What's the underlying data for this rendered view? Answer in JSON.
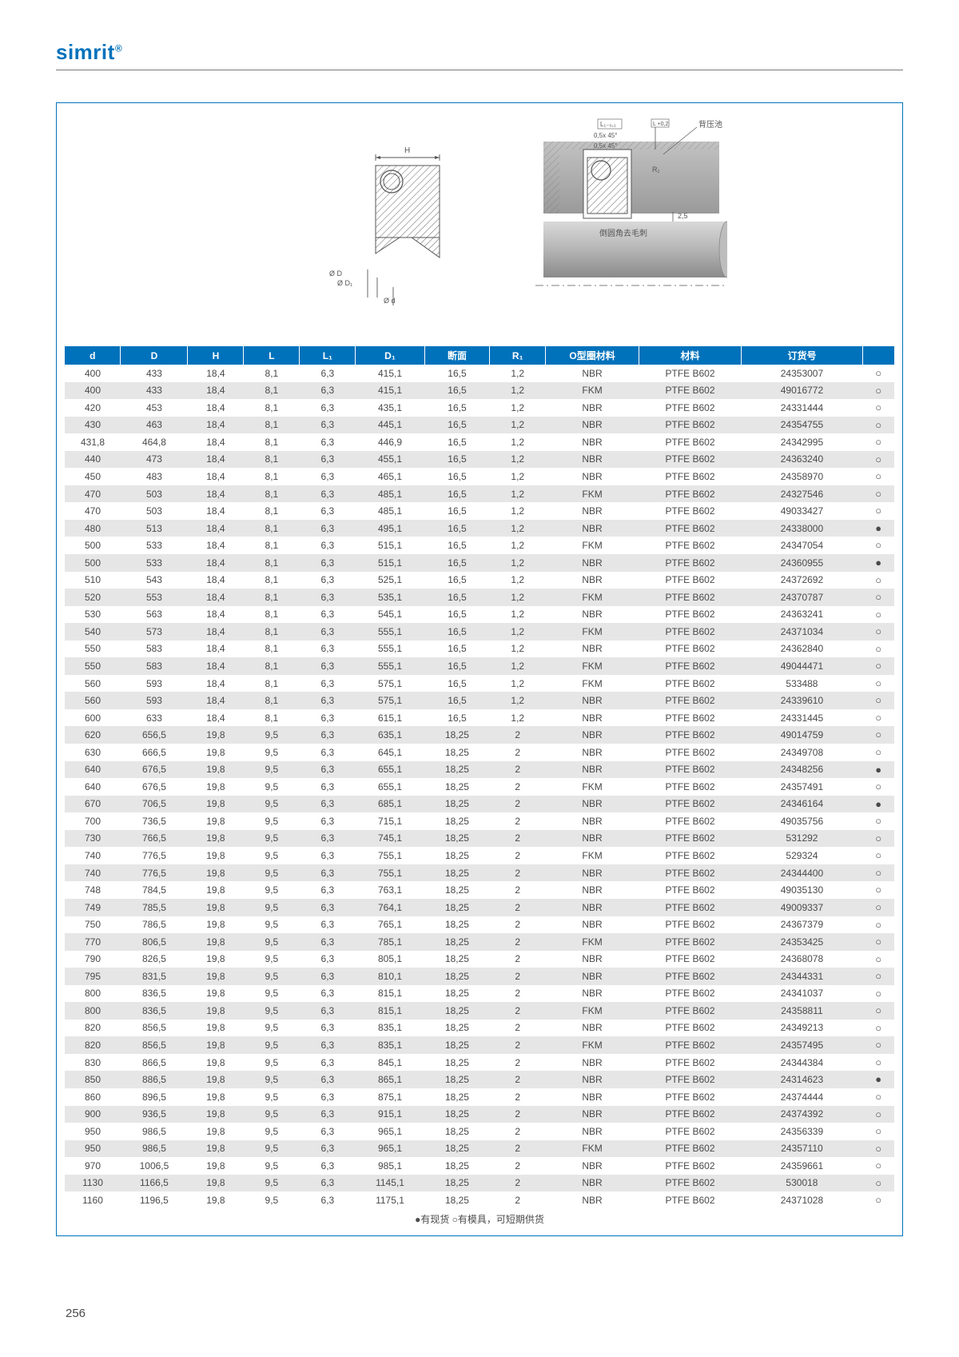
{
  "brand": "simrit",
  "brand_mark": "®",
  "page_number": "256",
  "footnote": "●有现货 ○有模具，可短期供货",
  "diagram_labels": {
    "H": "H",
    "L1": "L₁₋₀,₁",
    "c1": "0,5x  45°",
    "c2": "0,5x  45°",
    "R1": "R₁",
    "d25": "2,5",
    "dD": "Ø D",
    "dD1": "Ø D₁",
    "dd": "Ø d",
    "note1": "背压池",
    "note2": "倒圆角去毛刺"
  },
  "columns": [
    {
      "key": "d",
      "label": "d",
      "cls": "col-d"
    },
    {
      "key": "D",
      "label": "D",
      "cls": "col-D"
    },
    {
      "key": "H",
      "label": "H",
      "cls": "col-H"
    },
    {
      "key": "L",
      "label": "L",
      "cls": "col-L"
    },
    {
      "key": "L1",
      "label": "L₁",
      "cls": "col-L1"
    },
    {
      "key": "D1",
      "label": "D₁",
      "cls": "col-D1"
    },
    {
      "key": "sec",
      "label": "断面",
      "cls": "col-sec"
    },
    {
      "key": "R1",
      "label": "R₁",
      "cls": "col-R1"
    },
    {
      "key": "omat",
      "label": "O型圈材料",
      "cls": "col-omat"
    },
    {
      "key": "mat",
      "label": "材料",
      "cls": "col-mat"
    },
    {
      "key": "ord",
      "label": "订货号",
      "cls": "col-ord"
    },
    {
      "key": "avail",
      "label": "",
      "cls": "col-avail"
    }
  ],
  "rows": [
    {
      "d": "400",
      "D": "433",
      "H": "18,4",
      "L": "8,1",
      "L1": "6,3",
      "D1": "415,1",
      "sec": "16,5",
      "R1": "1,2",
      "omat": "NBR",
      "mat": "PTFE B602",
      "ord": "24353007",
      "avail": "○",
      "shade": false
    },
    {
      "d": "400",
      "D": "433",
      "H": "18,4",
      "L": "8,1",
      "L1": "6,3",
      "D1": "415,1",
      "sec": "16,5",
      "R1": "1,2",
      "omat": "FKM",
      "mat": "PTFE B602",
      "ord": "49016772",
      "avail": "○",
      "shade": true
    },
    {
      "d": "420",
      "D": "453",
      "H": "18,4",
      "L": "8,1",
      "L1": "6,3",
      "D1": "435,1",
      "sec": "16,5",
      "R1": "1,2",
      "omat": "NBR",
      "mat": "PTFE B602",
      "ord": "24331444",
      "avail": "○",
      "shade": false
    },
    {
      "d": "430",
      "D": "463",
      "H": "18,4",
      "L": "8,1",
      "L1": "6,3",
      "D1": "445,1",
      "sec": "16,5",
      "R1": "1,2",
      "omat": "NBR",
      "mat": "PTFE B602",
      "ord": "24354755",
      "avail": "○",
      "shade": true
    },
    {
      "d": "431,8",
      "D": "464,8",
      "H": "18,4",
      "L": "8,1",
      "L1": "6,3",
      "D1": "446,9",
      "sec": "16,5",
      "R1": "1,2",
      "omat": "NBR",
      "mat": "PTFE B602",
      "ord": "24342995",
      "avail": "○",
      "shade": false
    },
    {
      "d": "440",
      "D": "473",
      "H": "18,4",
      "L": "8,1",
      "L1": "6,3",
      "D1": "455,1",
      "sec": "16,5",
      "R1": "1,2",
      "omat": "NBR",
      "mat": "PTFE B602",
      "ord": "24363240",
      "avail": "○",
      "shade": true
    },
    {
      "d": "450",
      "D": "483",
      "H": "18,4",
      "L": "8,1",
      "L1": "6,3",
      "D1": "465,1",
      "sec": "16,5",
      "R1": "1,2",
      "omat": "NBR",
      "mat": "PTFE B602",
      "ord": "24358970",
      "avail": "○",
      "shade": false
    },
    {
      "d": "470",
      "D": "503",
      "H": "18,4",
      "L": "8,1",
      "L1": "6,3",
      "D1": "485,1",
      "sec": "16,5",
      "R1": "1,2",
      "omat": "FKM",
      "mat": "PTFE B602",
      "ord": "24327546",
      "avail": "○",
      "shade": true
    },
    {
      "d": "470",
      "D": "503",
      "H": "18,4",
      "L": "8,1",
      "L1": "6,3",
      "D1": "485,1",
      "sec": "16,5",
      "R1": "1,2",
      "omat": "NBR",
      "mat": "PTFE B602",
      "ord": "49033427",
      "avail": "○",
      "shade": false
    },
    {
      "d": "480",
      "D": "513",
      "H": "18,4",
      "L": "8,1",
      "L1": "6,3",
      "D1": "495,1",
      "sec": "16,5",
      "R1": "1,2",
      "omat": "NBR",
      "mat": "PTFE B602",
      "ord": "24338000",
      "avail": "●",
      "shade": true
    },
    {
      "d": "500",
      "D": "533",
      "H": "18,4",
      "L": "8,1",
      "L1": "6,3",
      "D1": "515,1",
      "sec": "16,5",
      "R1": "1,2",
      "omat": "FKM",
      "mat": "PTFE B602",
      "ord": "24347054",
      "avail": "○",
      "shade": false
    },
    {
      "d": "500",
      "D": "533",
      "H": "18,4",
      "L": "8,1",
      "L1": "6,3",
      "D1": "515,1",
      "sec": "16,5",
      "R1": "1,2",
      "omat": "NBR",
      "mat": "PTFE B602",
      "ord": "24360955",
      "avail": "●",
      "shade": true
    },
    {
      "d": "510",
      "D": "543",
      "H": "18,4",
      "L": "8,1",
      "L1": "6,3",
      "D1": "525,1",
      "sec": "16,5",
      "R1": "1,2",
      "omat": "NBR",
      "mat": "PTFE B602",
      "ord": "24372692",
      "avail": "○",
      "shade": false
    },
    {
      "d": "520",
      "D": "553",
      "H": "18,4",
      "L": "8,1",
      "L1": "6,3",
      "D1": "535,1",
      "sec": "16,5",
      "R1": "1,2",
      "omat": "FKM",
      "mat": "PTFE B602",
      "ord": "24370787",
      "avail": "○",
      "shade": true
    },
    {
      "d": "530",
      "D": "563",
      "H": "18,4",
      "L": "8,1",
      "L1": "6,3",
      "D1": "545,1",
      "sec": "16,5",
      "R1": "1,2",
      "omat": "NBR",
      "mat": "PTFE B602",
      "ord": "24363241",
      "avail": "○",
      "shade": false
    },
    {
      "d": "540",
      "D": "573",
      "H": "18,4",
      "L": "8,1",
      "L1": "6,3",
      "D1": "555,1",
      "sec": "16,5",
      "R1": "1,2",
      "omat": "FKM",
      "mat": "PTFE B602",
      "ord": "24371034",
      "avail": "○",
      "shade": true
    },
    {
      "d": "550",
      "D": "583",
      "H": "18,4",
      "L": "8,1",
      "L1": "6,3",
      "D1": "555,1",
      "sec": "16,5",
      "R1": "1,2",
      "omat": "NBR",
      "mat": "PTFE B602",
      "ord": "24362840",
      "avail": "○",
      "shade": false
    },
    {
      "d": "550",
      "D": "583",
      "H": "18,4",
      "L": "8,1",
      "L1": "6,3",
      "D1": "555,1",
      "sec": "16,5",
      "R1": "1,2",
      "omat": "FKM",
      "mat": "PTFE B602",
      "ord": "49044471",
      "avail": "○",
      "shade": true
    },
    {
      "d": "560",
      "D": "593",
      "H": "18,4",
      "L": "8,1",
      "L1": "6,3",
      "D1": "575,1",
      "sec": "16,5",
      "R1": "1,2",
      "omat": "FKM",
      "mat": "PTFE B602",
      "ord": "533488",
      "avail": "○",
      "shade": false
    },
    {
      "d": "560",
      "D": "593",
      "H": "18,4",
      "L": "8,1",
      "L1": "6,3",
      "D1": "575,1",
      "sec": "16,5",
      "R1": "1,2",
      "omat": "NBR",
      "mat": "PTFE B602",
      "ord": "24339610",
      "avail": "○",
      "shade": true
    },
    {
      "d": "600",
      "D": "633",
      "H": "18,4",
      "L": "8,1",
      "L1": "6,3",
      "D1": "615,1",
      "sec": "16,5",
      "R1": "1,2",
      "omat": "NBR",
      "mat": "PTFE B602",
      "ord": "24331445",
      "avail": "○",
      "shade": false
    },
    {
      "d": "620",
      "D": "656,5",
      "H": "19,8",
      "L": "9,5",
      "L1": "6,3",
      "D1": "635,1",
      "sec": "18,25",
      "R1": "2",
      "omat": "NBR",
      "mat": "PTFE B602",
      "ord": "49014759",
      "avail": "○",
      "shade": true
    },
    {
      "d": "630",
      "D": "666,5",
      "H": "19,8",
      "L": "9,5",
      "L1": "6,3",
      "D1": "645,1",
      "sec": "18,25",
      "R1": "2",
      "omat": "NBR",
      "mat": "PTFE B602",
      "ord": "24349708",
      "avail": "○",
      "shade": false
    },
    {
      "d": "640",
      "D": "676,5",
      "H": "19,8",
      "L": "9,5",
      "L1": "6,3",
      "D1": "655,1",
      "sec": "18,25",
      "R1": "2",
      "omat": "NBR",
      "mat": "PTFE B602",
      "ord": "24348256",
      "avail": "●",
      "shade": true
    },
    {
      "d": "640",
      "D": "676,5",
      "H": "19,8",
      "L": "9,5",
      "L1": "6,3",
      "D1": "655,1",
      "sec": "18,25",
      "R1": "2",
      "omat": "FKM",
      "mat": "PTFE B602",
      "ord": "24357491",
      "avail": "○",
      "shade": false
    },
    {
      "d": "670",
      "D": "706,5",
      "H": "19,8",
      "L": "9,5",
      "L1": "6,3",
      "D1": "685,1",
      "sec": "18,25",
      "R1": "2",
      "omat": "NBR",
      "mat": "PTFE B602",
      "ord": "24346164",
      "avail": "●",
      "shade": true
    },
    {
      "d": "700",
      "D": "736,5",
      "H": "19,8",
      "L": "9,5",
      "L1": "6,3",
      "D1": "715,1",
      "sec": "18,25",
      "R1": "2",
      "omat": "NBR",
      "mat": "PTFE B602",
      "ord": "49035756",
      "avail": "○",
      "shade": false
    },
    {
      "d": "730",
      "D": "766,5",
      "H": "19,8",
      "L": "9,5",
      "L1": "6,3",
      "D1": "745,1",
      "sec": "18,25",
      "R1": "2",
      "omat": "NBR",
      "mat": "PTFE B602",
      "ord": "531292",
      "avail": "○",
      "shade": true
    },
    {
      "d": "740",
      "D": "776,5",
      "H": "19,8",
      "L": "9,5",
      "L1": "6,3",
      "D1": "755,1",
      "sec": "18,25",
      "R1": "2",
      "omat": "FKM",
      "mat": "PTFE B602",
      "ord": "529324",
      "avail": "○",
      "shade": false
    },
    {
      "d": "740",
      "D": "776,5",
      "H": "19,8",
      "L": "9,5",
      "L1": "6,3",
      "D1": "755,1",
      "sec": "18,25",
      "R1": "2",
      "omat": "NBR",
      "mat": "PTFE B602",
      "ord": "24344400",
      "avail": "○",
      "shade": true
    },
    {
      "d": "748",
      "D": "784,5",
      "H": "19,8",
      "L": "9,5",
      "L1": "6,3",
      "D1": "763,1",
      "sec": "18,25",
      "R1": "2",
      "omat": "NBR",
      "mat": "PTFE B602",
      "ord": "49035130",
      "avail": "○",
      "shade": false
    },
    {
      "d": "749",
      "D": "785,5",
      "H": "19,8",
      "L": "9,5",
      "L1": "6,3",
      "D1": "764,1",
      "sec": "18,25",
      "R1": "2",
      "omat": "NBR",
      "mat": "PTFE B602",
      "ord": "49009337",
      "avail": "○",
      "shade": true
    },
    {
      "d": "750",
      "D": "786,5",
      "H": "19,8",
      "L": "9,5",
      "L1": "6,3",
      "D1": "765,1",
      "sec": "18,25",
      "R1": "2",
      "omat": "NBR",
      "mat": "PTFE B602",
      "ord": "24367379",
      "avail": "○",
      "shade": false
    },
    {
      "d": "770",
      "D": "806,5",
      "H": "19,8",
      "L": "9,5",
      "L1": "6,3",
      "D1": "785,1",
      "sec": "18,25",
      "R1": "2",
      "omat": "FKM",
      "mat": "PTFE B602",
      "ord": "24353425",
      "avail": "○",
      "shade": true
    },
    {
      "d": "790",
      "D": "826,5",
      "H": "19,8",
      "L": "9,5",
      "L1": "6,3",
      "D1": "805,1",
      "sec": "18,25",
      "R1": "2",
      "omat": "NBR",
      "mat": "PTFE B602",
      "ord": "24368078",
      "avail": "○",
      "shade": false
    },
    {
      "d": "795",
      "D": "831,5",
      "H": "19,8",
      "L": "9,5",
      "L1": "6,3",
      "D1": "810,1",
      "sec": "18,25",
      "R1": "2",
      "omat": "NBR",
      "mat": "PTFE B602",
      "ord": "24344331",
      "avail": "○",
      "shade": true
    },
    {
      "d": "800",
      "D": "836,5",
      "H": "19,8",
      "L": "9,5",
      "L1": "6,3",
      "D1": "815,1",
      "sec": "18,25",
      "R1": "2",
      "omat": "NBR",
      "mat": "PTFE B602",
      "ord": "24341037",
      "avail": "○",
      "shade": false
    },
    {
      "d": "800",
      "D": "836,5",
      "H": "19,8",
      "L": "9,5",
      "L1": "6,3",
      "D1": "815,1",
      "sec": "18,25",
      "R1": "2",
      "omat": "FKM",
      "mat": "PTFE B602",
      "ord": "24358811",
      "avail": "○",
      "shade": true
    },
    {
      "d": "820",
      "D": "856,5",
      "H": "19,8",
      "L": "9,5",
      "L1": "6,3",
      "D1": "835,1",
      "sec": "18,25",
      "R1": "2",
      "omat": "NBR",
      "mat": "PTFE B602",
      "ord": "24349213",
      "avail": "○",
      "shade": false
    },
    {
      "d": "820",
      "D": "856,5",
      "H": "19,8",
      "L": "9,5",
      "L1": "6,3",
      "D1": "835,1",
      "sec": "18,25",
      "R1": "2",
      "omat": "FKM",
      "mat": "PTFE B602",
      "ord": "24357495",
      "avail": "○",
      "shade": true
    },
    {
      "d": "830",
      "D": "866,5",
      "H": "19,8",
      "L": "9,5",
      "L1": "6,3",
      "D1": "845,1",
      "sec": "18,25",
      "R1": "2",
      "omat": "NBR",
      "mat": "PTFE B602",
      "ord": "24344384",
      "avail": "○",
      "shade": false
    },
    {
      "d": "850",
      "D": "886,5",
      "H": "19,8",
      "L": "9,5",
      "L1": "6,3",
      "D1": "865,1",
      "sec": "18,25",
      "R1": "2",
      "omat": "NBR",
      "mat": "PTFE B602",
      "ord": "24314623",
      "avail": "●",
      "shade": true
    },
    {
      "d": "860",
      "D": "896,5",
      "H": "19,8",
      "L": "9,5",
      "L1": "6,3",
      "D1": "875,1",
      "sec": "18,25",
      "R1": "2",
      "omat": "NBR",
      "mat": "PTFE B602",
      "ord": "24374444",
      "avail": "○",
      "shade": false
    },
    {
      "d": "900",
      "D": "936,5",
      "H": "19,8",
      "L": "9,5",
      "L1": "6,3",
      "D1": "915,1",
      "sec": "18,25",
      "R1": "2",
      "omat": "NBR",
      "mat": "PTFE B602",
      "ord": "24374392",
      "avail": "○",
      "shade": true
    },
    {
      "d": "950",
      "D": "986,5",
      "H": "19,8",
      "L": "9,5",
      "L1": "6,3",
      "D1": "965,1",
      "sec": "18,25",
      "R1": "2",
      "omat": "NBR",
      "mat": "PTFE B602",
      "ord": "24356339",
      "avail": "○",
      "shade": false
    },
    {
      "d": "950",
      "D": "986,5",
      "H": "19,8",
      "L": "9,5",
      "L1": "6,3",
      "D1": "965,1",
      "sec": "18,25",
      "R1": "2",
      "omat": "FKM",
      "mat": "PTFE B602",
      "ord": "24357110",
      "avail": "○",
      "shade": true
    },
    {
      "d": "970",
      "D": "1006,5",
      "H": "19,8",
      "L": "9,5",
      "L1": "6,3",
      "D1": "985,1",
      "sec": "18,25",
      "R1": "2",
      "omat": "NBR",
      "mat": "PTFE B602",
      "ord": "24359661",
      "avail": "○",
      "shade": false
    },
    {
      "d": "1130",
      "D": "1166,5",
      "H": "19,8",
      "L": "9,5",
      "L1": "6,3",
      "D1": "1145,1",
      "sec": "18,25",
      "R1": "2",
      "omat": "NBR",
      "mat": "PTFE B602",
      "ord": "530018",
      "avail": "○",
      "shade": true
    },
    {
      "d": "1160",
      "D": "1196,5",
      "H": "19,8",
      "L": "9,5",
      "L1": "6,3",
      "D1": "1175,1",
      "sec": "18,25",
      "R1": "2",
      "omat": "NBR",
      "mat": "PTFE B602",
      "ord": "24371028",
      "avail": "○",
      "shade": false
    }
  ]
}
